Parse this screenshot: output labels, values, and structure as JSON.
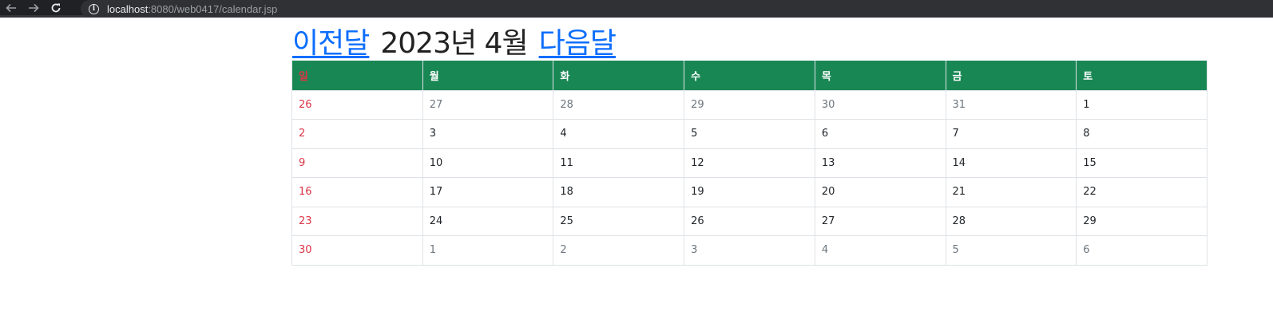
{
  "browser": {
    "url_host": "localhost",
    "url_rest": ":8080/web0417/calendar.jsp"
  },
  "calendar": {
    "prev_label": "이전달",
    "title": "2023년 4월",
    "next_label": "다음달",
    "weekdays": [
      "일",
      "월",
      "화",
      "수",
      "목",
      "금",
      "토"
    ],
    "weeks": [
      [
        {
          "day": "26",
          "other": true
        },
        {
          "day": "27",
          "other": true
        },
        {
          "day": "28",
          "other": true
        },
        {
          "day": "29",
          "other": true
        },
        {
          "day": "30",
          "other": true
        },
        {
          "day": "31",
          "other": true
        },
        {
          "day": "1",
          "other": false
        }
      ],
      [
        {
          "day": "2",
          "other": false
        },
        {
          "day": "3",
          "other": false
        },
        {
          "day": "4",
          "other": false
        },
        {
          "day": "5",
          "other": false
        },
        {
          "day": "6",
          "other": false
        },
        {
          "day": "7",
          "other": false
        },
        {
          "day": "8",
          "other": false
        }
      ],
      [
        {
          "day": "9",
          "other": false
        },
        {
          "day": "10",
          "other": false
        },
        {
          "day": "11",
          "other": false
        },
        {
          "day": "12",
          "other": false
        },
        {
          "day": "13",
          "other": false
        },
        {
          "day": "14",
          "other": false
        },
        {
          "day": "15",
          "other": false
        }
      ],
      [
        {
          "day": "16",
          "other": false
        },
        {
          "day": "17",
          "other": false
        },
        {
          "day": "18",
          "other": false
        },
        {
          "day": "19",
          "other": false
        },
        {
          "day": "20",
          "other": false
        },
        {
          "day": "21",
          "other": false
        },
        {
          "day": "22",
          "other": false
        }
      ],
      [
        {
          "day": "23",
          "other": false
        },
        {
          "day": "24",
          "other": false
        },
        {
          "day": "25",
          "other": false
        },
        {
          "day": "26",
          "other": false
        },
        {
          "day": "27",
          "other": false
        },
        {
          "day": "28",
          "other": false
        },
        {
          "day": "29",
          "other": false
        }
      ],
      [
        {
          "day": "30",
          "other": false
        },
        {
          "day": "1",
          "other": true
        },
        {
          "day": "2",
          "other": true
        },
        {
          "day": "3",
          "other": true
        },
        {
          "day": "4",
          "other": true
        },
        {
          "day": "5",
          "other": true
        },
        {
          "day": "6",
          "other": true
        }
      ]
    ]
  },
  "colors": {
    "header_bg": "#198754",
    "sunday": "#dc3545",
    "link": "#0d6efd"
  }
}
